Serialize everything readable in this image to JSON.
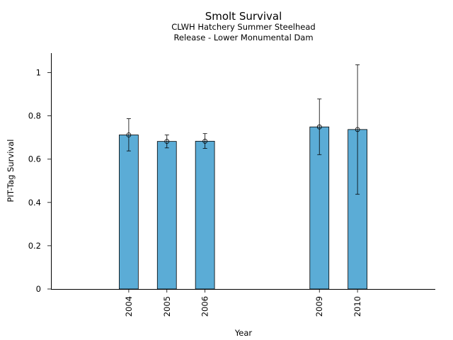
{
  "chart_data": {
    "type": "bar",
    "title": "Smolt Survival",
    "subtitle_lines": [
      "CLWH Hatchery Summer Steelhead",
      "Release - Lower Monumental Dam"
    ],
    "xlabel": "Year",
    "ylabel": "PIT-Tag Survival",
    "x_range": [
      2001.96,
      2012.04
    ],
    "ylim": [
      0,
      1.09
    ],
    "y_ticks": [
      0,
      0.2,
      0.4,
      0.6,
      0.8,
      1
    ],
    "y_tick_labels": [
      "0",
      "0.2",
      "0.4",
      "0.6",
      "0.8",
      "1"
    ],
    "bar_width_years": 0.5,
    "bar_color": "#5BACD6",
    "grid": false,
    "series": [
      {
        "x": [
          2004,
          2005,
          2006,
          2009,
          2010
        ],
        "x_labels": [
          "2004",
          "2005",
          "2006",
          "2009",
          "2010"
        ],
        "values": [
          0.712,
          0.682,
          0.683,
          0.749,
          0.737
        ],
        "err_low": [
          0.638,
          0.652,
          0.65,
          0.621,
          0.438
        ],
        "err_high": [
          0.787,
          0.712,
          0.718,
          0.878,
          1.036
        ]
      }
    ]
  }
}
